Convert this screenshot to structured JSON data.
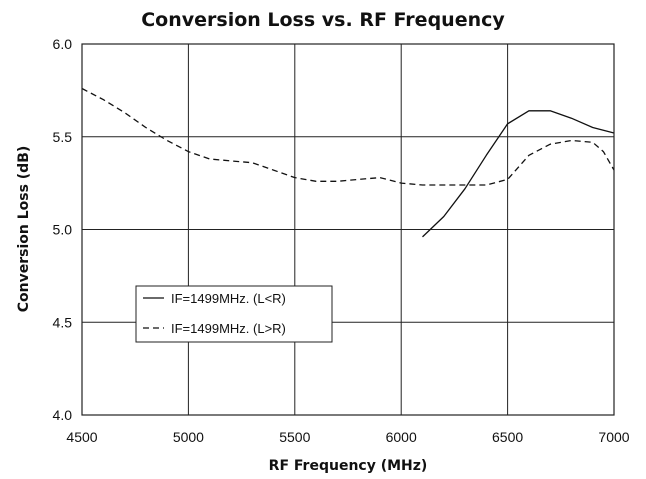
{
  "chart_data": {
    "type": "line",
    "title": "Conversion Loss vs. RF Frequency",
    "xlabel": "RF Frequency (MHz)",
    "ylabel": "Conversion Loss (dB)",
    "xlim": [
      4500,
      7000
    ],
    "ylim": [
      4.0,
      6.0
    ],
    "xticks": [
      4500,
      5000,
      5500,
      6000,
      6500,
      7000
    ],
    "yticks": [
      "4.0",
      "4.5",
      "5.0",
      "5.5",
      "6.0"
    ],
    "grid": true,
    "legend_position": "center-left",
    "series": [
      {
        "name": "IF=1499MHz. (L<R)",
        "line_style": "solid",
        "color": "#111111",
        "points": [
          [
            6100,
            4.96
          ],
          [
            6200,
            5.07
          ],
          [
            6300,
            5.22
          ],
          [
            6400,
            5.4
          ],
          [
            6500,
            5.57
          ],
          [
            6600,
            5.64
          ],
          [
            6700,
            5.64
          ],
          [
            6800,
            5.6
          ],
          [
            6900,
            5.55
          ],
          [
            7000,
            5.52
          ]
        ]
      },
      {
        "name": "IF=1499MHz. (L>R)",
        "line_style": "dashed",
        "color": "#111111",
        "points": [
          [
            4500,
            5.76
          ],
          [
            4600,
            5.7
          ],
          [
            4700,
            5.63
          ],
          [
            4800,
            5.55
          ],
          [
            4900,
            5.48
          ],
          [
            5000,
            5.42
          ],
          [
            5100,
            5.38
          ],
          [
            5200,
            5.37
          ],
          [
            5300,
            5.36
          ],
          [
            5400,
            5.32
          ],
          [
            5500,
            5.28
          ],
          [
            5600,
            5.26
          ],
          [
            5700,
            5.26
          ],
          [
            5800,
            5.27
          ],
          [
            5900,
            5.28
          ],
          [
            6000,
            5.25
          ],
          [
            6100,
            5.24
          ],
          [
            6200,
            5.24
          ],
          [
            6300,
            5.24
          ],
          [
            6400,
            5.24
          ],
          [
            6500,
            5.27
          ],
          [
            6600,
            5.4
          ],
          [
            6700,
            5.46
          ],
          [
            6800,
            5.48
          ],
          [
            6900,
            5.47
          ],
          [
            6950,
            5.42
          ],
          [
            7000,
            5.32
          ]
        ]
      }
    ]
  }
}
